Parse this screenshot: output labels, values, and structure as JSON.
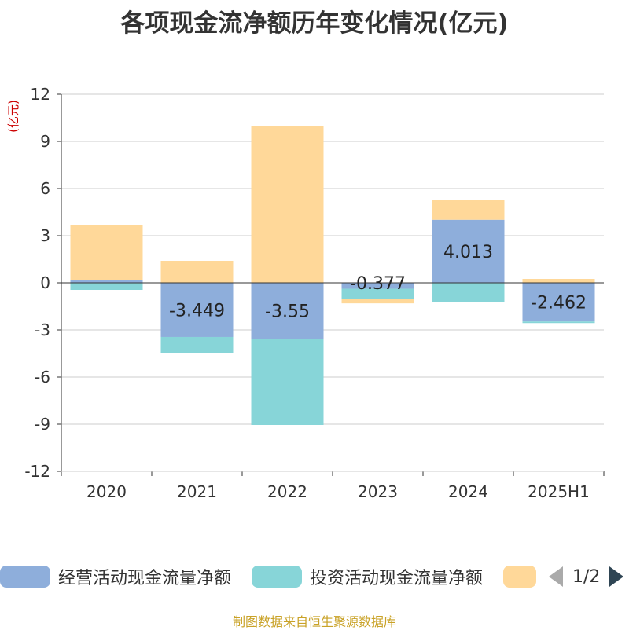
{
  "page": {
    "title": "各项现金流净额历年变化情况(亿元)",
    "footer": "制图数据来自恒生聚源数据库"
  },
  "pager": {
    "text": "1/2",
    "prev_icon": "chevron-left-icon",
    "next_icon": "chevron-right-icon"
  },
  "chart_data": {
    "type": "bar",
    "stacked": true,
    "unit_label": "(亿元)",
    "categories": [
      "2020",
      "2021",
      "2022",
      "2023",
      "2024",
      "2025H1"
    ],
    "ylim": [
      -12,
      12
    ],
    "yticks": [
      12,
      9,
      6,
      3,
      0,
      -3,
      -6,
      -9,
      -12
    ],
    "grid": true,
    "legend_position": "bottom",
    "series": [
      {
        "name": "经营活动现金流量净额",
        "color": "#8eaedb",
        "values": [
          0.2,
          -3.449,
          -3.55,
          -0.377,
          4.013,
          -2.462
        ],
        "labels": [
          "",
          "-3.449",
          "-3.55",
          "-0.377",
          "4.013",
          "-2.462"
        ]
      },
      {
        "name": "投资活动现金流量净额",
        "color": "#87d5d8",
        "values": [
          -0.45,
          -1.05,
          -5.5,
          -0.63,
          -1.25,
          -0.1
        ]
      },
      {
        "name": "",
        "color": "#ffd899",
        "values": [
          3.5,
          1.4,
          10.0,
          -0.3,
          1.25,
          0.25
        ]
      }
    ]
  }
}
